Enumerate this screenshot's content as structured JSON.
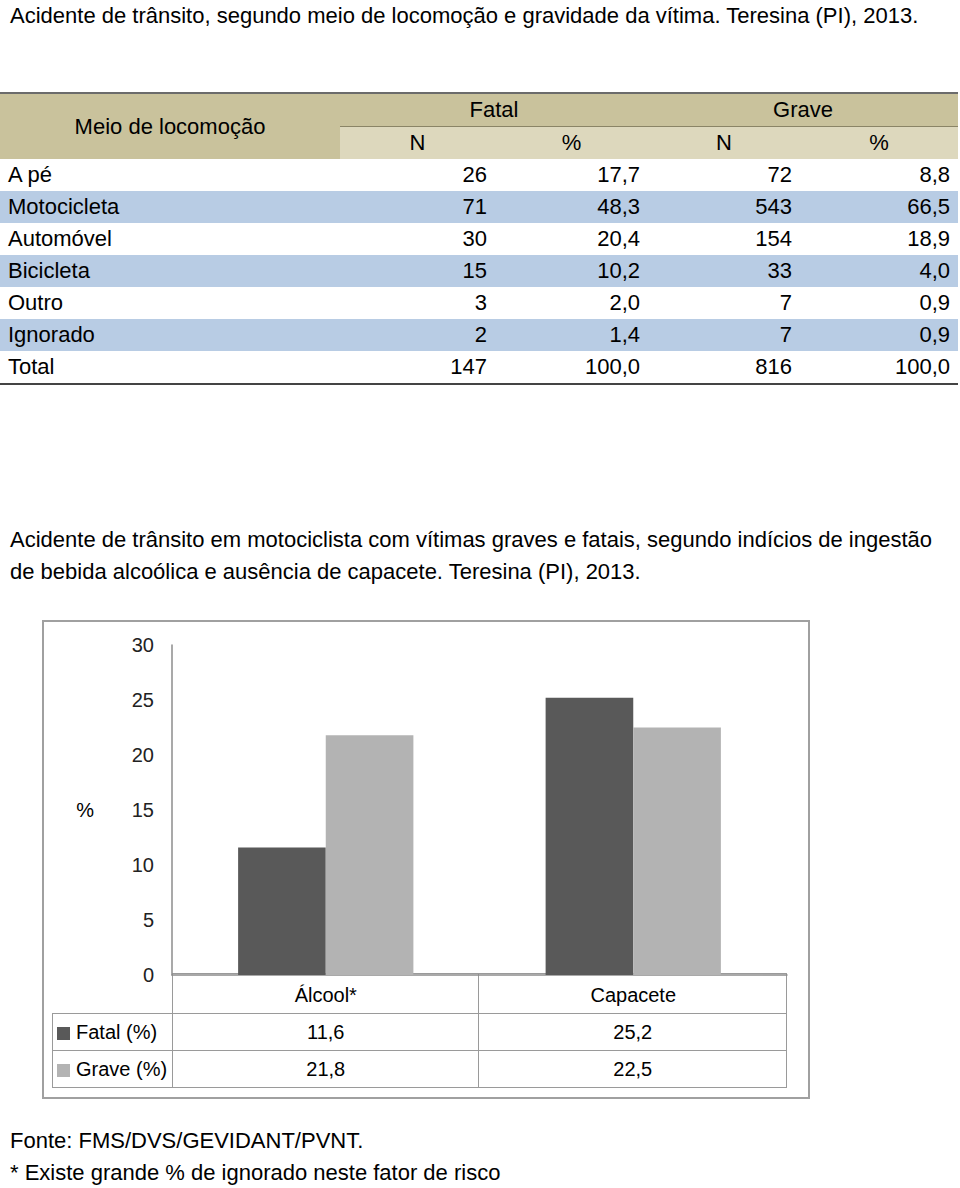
{
  "table": {
    "title": "Acidente de trânsito, segundo meio de locomoção e gravidade da vítima. Teresina (PI), 2013.",
    "header": {
      "group_label": "Meio de locomoção",
      "groups": [
        "Fatal",
        "Grave"
      ],
      "subcolumns": [
        "N",
        "%",
        "N",
        "%"
      ]
    },
    "rows": [
      [
        "A pé",
        "26",
        "17,7",
        "72",
        "8,8"
      ],
      [
        "Motocicleta",
        "71",
        "48,3",
        "543",
        "66,5"
      ],
      [
        "Automóvel",
        "30",
        "20,4",
        "154",
        "18,9"
      ],
      [
        "Bicicleta",
        "15",
        "10,2",
        "33",
        "4,0"
      ],
      [
        "Outro",
        "3",
        "2,0",
        "7",
        "0,9"
      ],
      [
        "Ignorado",
        "2",
        "1,4",
        "7",
        "0,9"
      ],
      [
        "Total",
        "147",
        "100,0",
        "816",
        "100,0"
      ]
    ]
  },
  "chart_data": {
    "type": "bar",
    "title": "Acidente de trânsito em motociclista com vítimas graves e fatais, segundo indícios de ingestão de bebida alcoólica e ausência de capacete. Teresina (PI), 2013.",
    "y_label": "%",
    "categories": [
      "Álcool*",
      "Capacete"
    ],
    "series": [
      {
        "name": "Fatal (%)",
        "color": "#595959",
        "values": [
          11.6,
          25.2
        ],
        "value_labels": [
          "11,6",
          "25,2"
        ]
      },
      {
        "name": "Grave (%)",
        "color": "#b3b3b3",
        "values": [
          21.8,
          22.5
        ],
        "value_labels": [
          "21,8",
          "22,5"
        ]
      }
    ],
    "ylim": [
      0,
      30
    ],
    "yticks": [
      0,
      5,
      10,
      15,
      20,
      25,
      30
    ],
    "grid": false
  },
  "source": "Fonte: FMS/DVS/GEVIDANT/PVNT.",
  "footnote": "* Existe grande % de ignorado neste fator de risco"
}
